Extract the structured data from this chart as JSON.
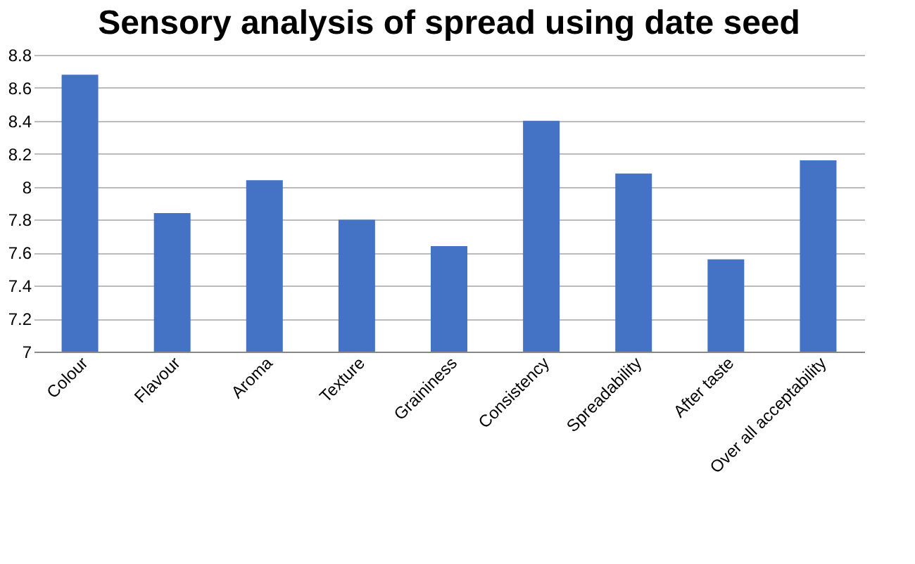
{
  "chart_data": {
    "type": "bar",
    "title": "Sensory analysis of spread using date seed",
    "categories": [
      "Colour",
      "Flavour",
      "Aroma",
      "Texture",
      "Graininess",
      "Consistency",
      "Spreadability",
      "After taste",
      "Over all acceptability"
    ],
    "values": [
      8.68,
      7.84,
      8.04,
      7.8,
      7.64,
      8.4,
      8.08,
      7.56,
      8.16
    ],
    "color": "#4472c4",
    "ylim": [
      7,
      8.8
    ],
    "yticks": [
      7,
      7.2,
      7.4,
      7.6,
      7.8,
      8,
      8.2,
      8.4,
      8.6,
      8.8
    ],
    "grid": "y"
  }
}
